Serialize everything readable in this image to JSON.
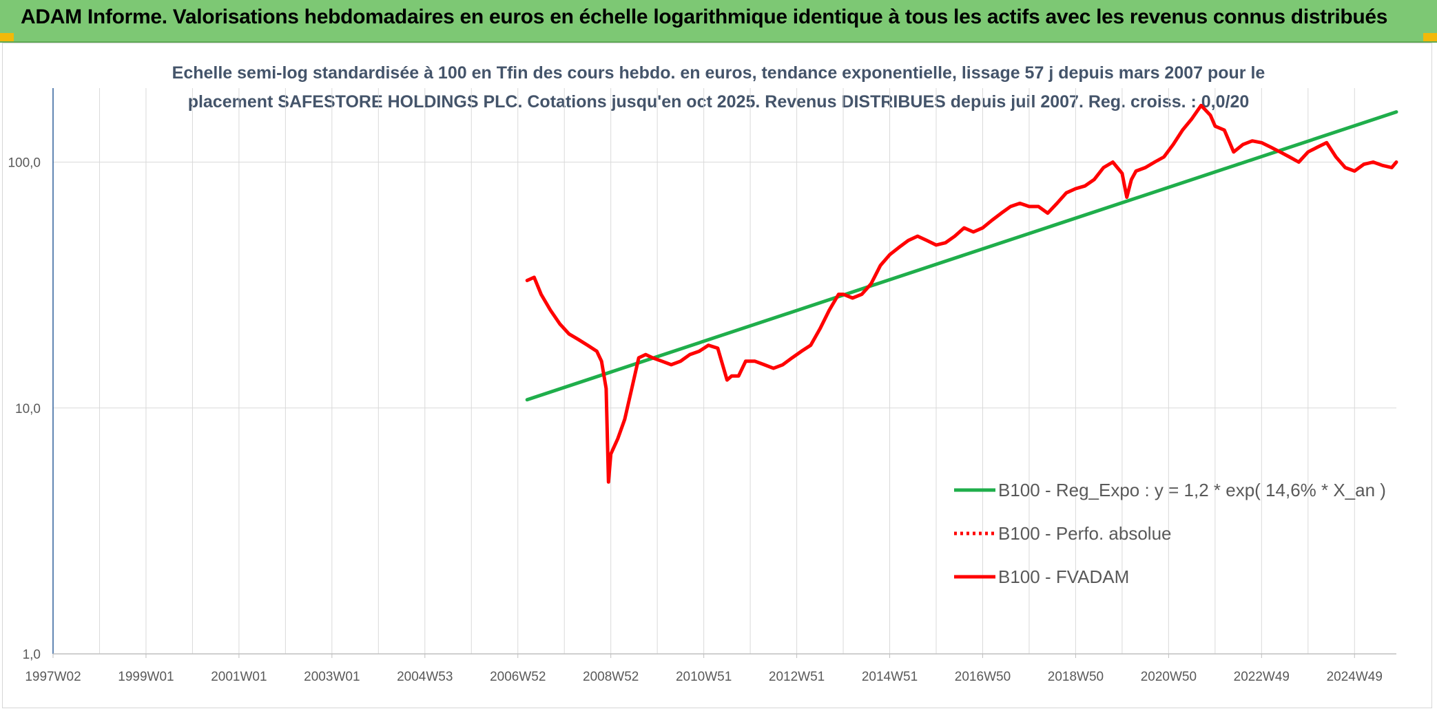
{
  "header": {
    "title": "ADAM Informe. Valorisations hebdomadaires en euros en échelle logarithmique identique à tous les actifs avec les revenus connus distribués"
  },
  "colors": {
    "banner": "#7dc874",
    "regression": "#1fae4b",
    "fvadam": "#ff0000",
    "grid": "#d9d9d9",
    "subtitle": "#44546a"
  },
  "chart_data": {
    "type": "line",
    "title_lines": [
      "Echelle semi-log standardisée à 100 en Tfin des cours hebdo. en euros, tendance exponentielle, lissage 57 j depuis mars 2007 pour le",
      "placement SAFESTORE HOLDINGS PLC. Cotations jusqu'en oct 2025. Revenus DISTRIBUES depuis juil 2007. Reg. croiss. : 0,0/20"
    ],
    "y_scale": "log",
    "ylim": [
      1,
      200
    ],
    "y_ticks": [
      {
        "value": 1,
        "label": "1,0"
      },
      {
        "value": 10,
        "label": "10,0"
      },
      {
        "value": 100,
        "label": "100,0"
      }
    ],
    "xlim": [
      1997.0,
      2025.9
    ],
    "x_ticks": [
      {
        "pos": 1997.0,
        "label": "1997W02"
      },
      {
        "pos": 1999.0,
        "label": "1999W01"
      },
      {
        "pos": 2001.0,
        "label": "2001W01"
      },
      {
        "pos": 2003.0,
        "label": "2003W01"
      },
      {
        "pos": 2005.0,
        "label": "2004W53"
      },
      {
        "pos": 2007.0,
        "label": "2006W52"
      },
      {
        "pos": 2009.0,
        "label": "2008W52"
      },
      {
        "pos": 2011.0,
        "label": "2010W51"
      },
      {
        "pos": 2013.0,
        "label": "2012W51"
      },
      {
        "pos": 2015.0,
        "label": "2014W51"
      },
      {
        "pos": 2017.0,
        "label": "2016W50"
      },
      {
        "pos": 2019.0,
        "label": "2018W50"
      },
      {
        "pos": 2021.0,
        "label": "2020W50"
      },
      {
        "pos": 2023.0,
        "label": "2022W49"
      },
      {
        "pos": 2025.0,
        "label": "2024W49"
      }
    ],
    "grid": {
      "vertical": true,
      "horizontal": true
    },
    "legend_position": "bottom-right",
    "series": [
      {
        "name": "B100 - Reg_Expo : y = 1,2 * exp( 14,6% *  X_an )",
        "style": "solid",
        "color": "#1fae4b",
        "x": [
          2007.2,
          2025.9
        ],
        "y": [
          10.8,
          160
        ]
      },
      {
        "name": "B100 - Perfo. absolue",
        "style": "dotted",
        "color": "#ff0000",
        "x": [],
        "y": []
      },
      {
        "name": "B100 - FVADAM",
        "style": "solid",
        "color": "#ff0000",
        "x": [
          2007.2,
          2007.35,
          2007.5,
          2007.7,
          2007.9,
          2008.1,
          2008.3,
          2008.5,
          2008.7,
          2008.8,
          2008.9,
          2008.95,
          2009.0,
          2009.15,
          2009.3,
          2009.45,
          2009.6,
          2009.75,
          2009.9,
          2010.1,
          2010.3,
          2010.5,
          2010.7,
          2010.9,
          2011.1,
          2011.3,
          2011.5,
          2011.6,
          2011.75,
          2011.9,
          2012.1,
          2012.3,
          2012.5,
          2012.7,
          2012.9,
          2013.1,
          2013.3,
          2013.5,
          2013.7,
          2013.9,
          2014.0,
          2014.2,
          2014.4,
          2014.6,
          2014.8,
          2015.0,
          2015.2,
          2015.4,
          2015.6,
          2015.8,
          2016.0,
          2016.2,
          2016.4,
          2016.6,
          2016.8,
          2017.0,
          2017.2,
          2017.4,
          2017.6,
          2017.8,
          2018.0,
          2018.2,
          2018.4,
          2018.6,
          2018.8,
          2019.0,
          2019.2,
          2019.4,
          2019.6,
          2019.8,
          2020.0,
          2020.1,
          2020.2,
          2020.3,
          2020.5,
          2020.7,
          2020.9,
          2021.1,
          2021.3,
          2021.5,
          2021.7,
          2021.9,
          2022.0,
          2022.2,
          2022.4,
          2022.6,
          2022.8,
          2023.0,
          2023.2,
          2023.4,
          2023.6,
          2023.8,
          2024.0,
          2024.2,
          2024.4,
          2024.6,
          2024.8,
          2025.0,
          2025.2,
          2025.4,
          2025.6,
          2025.8,
          2025.9
        ],
        "y": [
          33,
          34,
          29,
          25,
          22,
          20,
          19,
          18,
          17,
          15.5,
          12,
          5,
          6.5,
          7.5,
          9,
          12,
          16,
          16.5,
          16,
          15.5,
          15,
          15.5,
          16.5,
          17,
          18,
          17.5,
          13,
          13.5,
          13.5,
          15.5,
          15.5,
          15,
          14.5,
          15,
          16,
          17,
          18,
          21,
          25,
          29,
          29,
          28,
          29,
          32,
          38,
          42,
          45,
          48,
          50,
          48,
          46,
          47,
          50,
          54,
          52,
          54,
          58,
          62,
          66,
          68,
          66,
          66,
          62,
          68,
          75,
          78,
          80,
          85,
          95,
          100,
          90,
          72,
          85,
          92,
          95,
          100,
          105,
          118,
          135,
          150,
          170,
          155,
          140,
          135,
          110,
          118,
          122,
          120,
          115,
          110,
          105,
          100,
          110,
          115,
          120,
          105,
          95,
          92,
          98,
          100,
          97,
          95,
          100
        ]
      }
    ]
  }
}
